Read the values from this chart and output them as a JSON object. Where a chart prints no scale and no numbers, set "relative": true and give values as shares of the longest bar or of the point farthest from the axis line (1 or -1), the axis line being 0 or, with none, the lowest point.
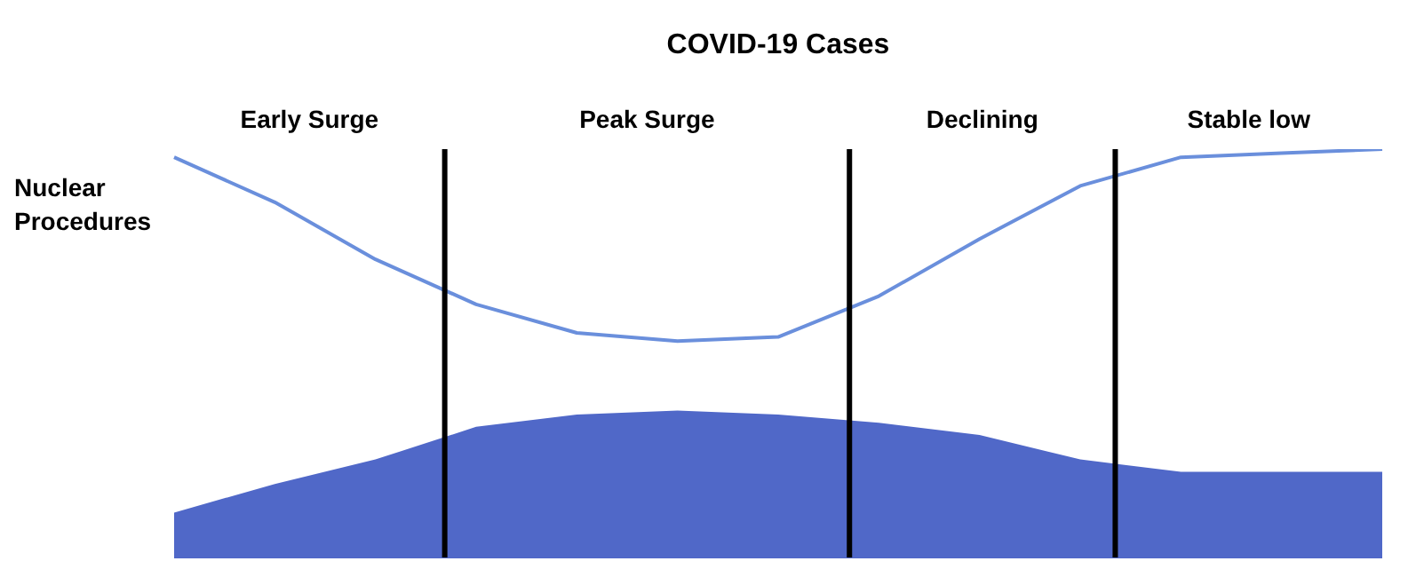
{
  "chart_data": {
    "type": "line",
    "title": "COVID-19 Cases",
    "relative": true,
    "grid": false,
    "legend": false,
    "marker": "none",
    "categories": [
      null,
      null,
      null,
      null,
      null,
      null,
      null,
      null,
      null,
      null,
      null,
      null,
      null
    ],
    "series": [
      {
        "type": "area",
        "color": "#5068c8",
        "values": [
          0.11,
          0.18,
          0.24,
          0.32,
          0.35,
          0.36,
          0.35,
          0.33,
          0.3,
          0.24,
          0.21,
          0.21,
          0.21
        ]
      },
      {
        "name": "Nuclear Procedures",
        "color": "#6a8fdc",
        "values": [
          0.98,
          0.87,
          0.73,
          0.62,
          0.55,
          0.53,
          0.54,
          0.64,
          0.78,
          0.91,
          0.98,
          0.99,
          1
        ]
      }
    ],
    "annotations": [
      "Early Surge",
      "Peak Surge",
      "Declining",
      "Stable low"
    ]
  }
}
